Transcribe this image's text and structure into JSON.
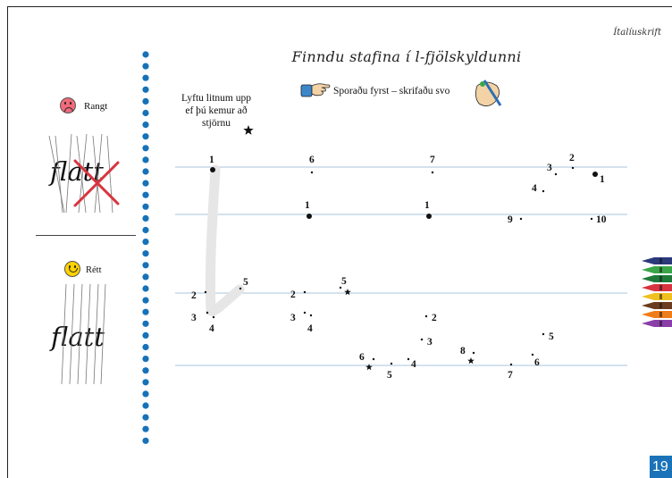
{
  "header": {
    "tag": "Ítalíuskrift"
  },
  "title": "Finndu stafina í l-fjölskyldunni",
  "instruction": "Sporaðu fyrst – skrifaðu svo",
  "lift_note": {
    "line1": "Lyftu litnum upp",
    "line2": "ef þú kemur að",
    "line3": "stjörnu"
  },
  "examples": {
    "wrong_label": "Rangt",
    "right_label": "Rétt",
    "word": "flatt"
  },
  "page_number": "19",
  "icons": {
    "sad": "sad-face-icon",
    "happy": "smiley-face-icon",
    "pointing_hand": "pointing-hand-icon",
    "writing_hand": "writing-hand-icon",
    "crayons": "crayons-icon",
    "star": "star-icon"
  },
  "colors": {
    "spiral_dots": "#1672b8",
    "guide_lines": "#a9c4dd",
    "cross": "#d8343f",
    "page_badge": "#1a73b8"
  },
  "dot_labels": {
    "l1": "1",
    "l2": "2",
    "l3": "3",
    "l4": "4",
    "l5": "5",
    "a6": "6",
    "a1": "1",
    "a2": "2",
    "a3": "3",
    "a4": "4",
    "a5": "5",
    "b7": "7",
    "b1": "1",
    "b2": "2",
    "b3": "3",
    "b4": "4",
    "b5": "5",
    "b6": "6",
    "c1": "1",
    "c2": "2",
    "c3": "3",
    "c4": "4",
    "c5": "5",
    "c6": "6",
    "c7": "7",
    "c8": "8",
    "c9": "9",
    "c10": "10"
  }
}
